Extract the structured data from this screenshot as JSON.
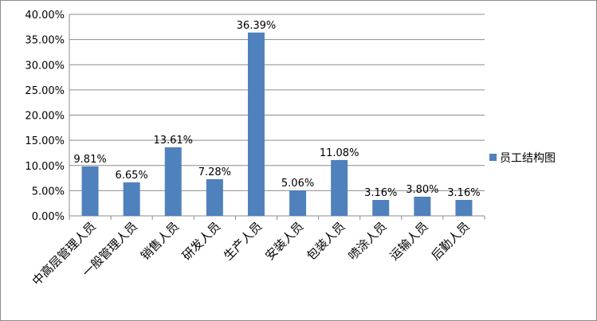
{
  "chart_data": {
    "type": "bar",
    "categories": [
      "中高层管理人员",
      "一般管理人员",
      "销售人员",
      "研发人员",
      "生产人员",
      "安装人员",
      "包装人员",
      "喷涂人员",
      "运输人员",
      "后勤人员"
    ],
    "series": [
      {
        "name": "员工结构图",
        "values": [
          9.81,
          6.65,
          13.61,
          7.28,
          36.39,
          5.06,
          11.08,
          3.16,
          3.8,
          3.16
        ],
        "labels": [
          "9.81%",
          "6.65%",
          "13.61%",
          "7.28%",
          "36.39%",
          "5.06%",
          "11.08%",
          "3.16%",
          "3.80%",
          "3.16%"
        ]
      }
    ],
    "ylim": [
      0,
      40
    ],
    "yticks": [
      0,
      5,
      10,
      15,
      20,
      25,
      30,
      35,
      40
    ],
    "ytick_labels": [
      "0.00%",
      "5.00%",
      "10.00%",
      "15.00%",
      "20.00%",
      "25.00%",
      "30.00%",
      "35.00%",
      "40.00%"
    ],
    "grid": true,
    "legend_position": "right",
    "colors": {
      "bar": "#4f81bd",
      "grid": "#8c8c8c",
      "axis": "#8c8c8c"
    }
  }
}
